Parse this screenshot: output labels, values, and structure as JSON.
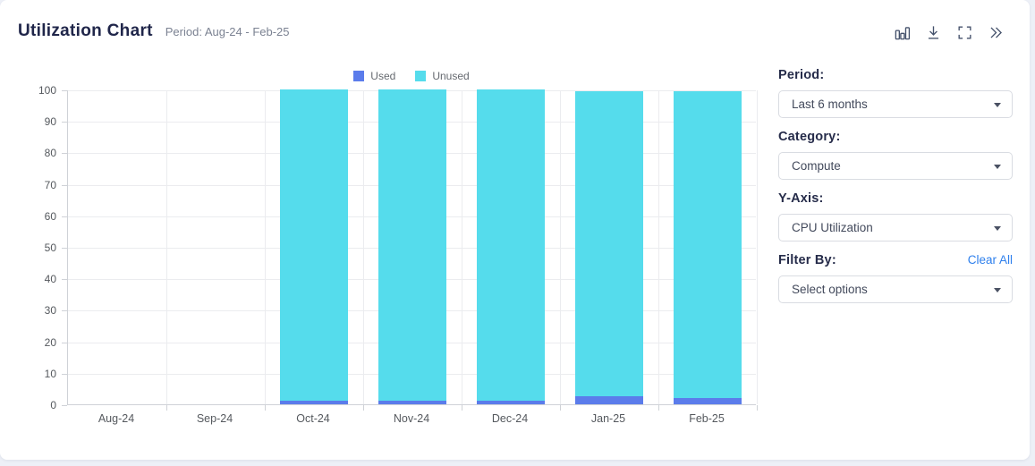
{
  "header": {
    "title": "Utilization Chart",
    "period_text": "Period: Aug-24 - Feb-25",
    "icons": [
      "bar-chart-icon",
      "download-icon",
      "fullscreen-icon",
      "collapse-panel-icon"
    ]
  },
  "chart_data": {
    "type": "bar",
    "stacked": true,
    "title": "Utilization Chart",
    "categories": [
      "Aug-24",
      "Sep-24",
      "Oct-24",
      "Nov-24",
      "Dec-24",
      "Jan-25",
      "Feb-25"
    ],
    "series": [
      {
        "name": "Used",
        "color": "#5b7ceb",
        "values": [
          0,
          0,
          1,
          1,
          1,
          2.5,
          2
        ]
      },
      {
        "name": "Unused",
        "color": "#55dcec",
        "values": [
          0,
          0,
          99,
          99,
          99,
          97,
          97.5
        ]
      }
    ],
    "ylim": [
      0,
      100
    ],
    "yticks": [
      0,
      10,
      20,
      30,
      40,
      50,
      60,
      70,
      80,
      90,
      100
    ],
    "grid": true,
    "legend_position": "top"
  },
  "panel": {
    "period": {
      "label": "Period:",
      "value": "Last 6 months"
    },
    "category": {
      "label": "Category:",
      "value": "Compute"
    },
    "yaxis": {
      "label": "Y-Axis:",
      "value": "CPU Utilization"
    },
    "filter": {
      "label": "Filter By:",
      "clear_label": "Clear All",
      "value": "Select options"
    }
  },
  "colors": {
    "page_bg": "#edf0f7",
    "card_bg": "#ffffff",
    "used": "#5b7ceb",
    "unused": "#55dcec",
    "title": "#20264a",
    "link": "#2f80ed",
    "icon": "#44516b"
  }
}
